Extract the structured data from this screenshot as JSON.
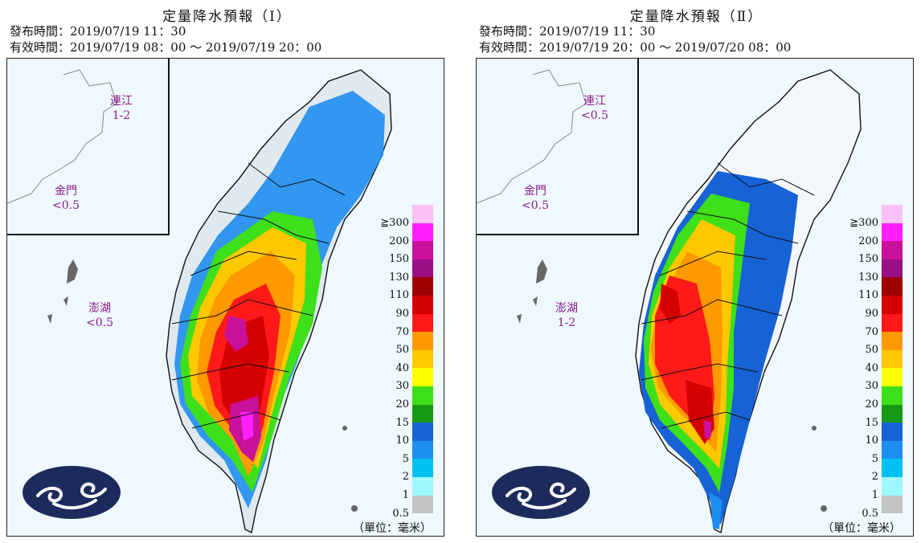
{
  "panels": [
    {
      "title": "定量降水預報（Ⅰ）",
      "issued": "發布時間：2019/07/19 11：30",
      "valid": "有效時間：2019/07/19 08：00 ～ 2019/07/19 20：00",
      "islands": {
        "lienchiang": {
          "name": "連江",
          "value": "1-2"
        },
        "kinmen": {
          "name": "金門",
          "value": "<0.5"
        },
        "penghu": {
          "name": "澎湖",
          "value": "<0.5"
        }
      }
    },
    {
      "title": "定量降水預報（Ⅱ）",
      "issued": "發布時間：2019/07/19 11：30",
      "valid": "有效時間：2019/07/19 20：00 ～ 2019/07/20 08：00",
      "islands": {
        "lienchiang": {
          "name": "連江",
          "value": "<0.5"
        },
        "kinmen": {
          "name": "金門",
          "value": "<0.5"
        },
        "penghu": {
          "name": "澎湖",
          "value": "1-2"
        }
      }
    }
  ],
  "legend": {
    "labels": [
      "≧300",
      "200",
      "150",
      "130",
      "110",
      "90",
      "70",
      "50",
      "40",
      "30",
      "20",
      "15",
      "10",
      "5",
      "2",
      "1",
      "0.5"
    ],
    "colors": [
      "#f9c0f5",
      "#ff1fff",
      "#c8109b",
      "#9a0f86",
      "#9e0000",
      "#d40000",
      "#ff1a1a",
      "#ff9900",
      "#ffc800",
      "#ffff00",
      "#3ee01a",
      "#169a14",
      "#1763d6",
      "#1e8ef0",
      "#00c2f2",
      "#9ef8ff",
      "#c3c3c3"
    ],
    "unit": "（單位：毫米）"
  },
  "colors": {
    "sea": "#eef8fd",
    "island_label": "#8b1a8b",
    "logo": "#1d2a5c"
  }
}
